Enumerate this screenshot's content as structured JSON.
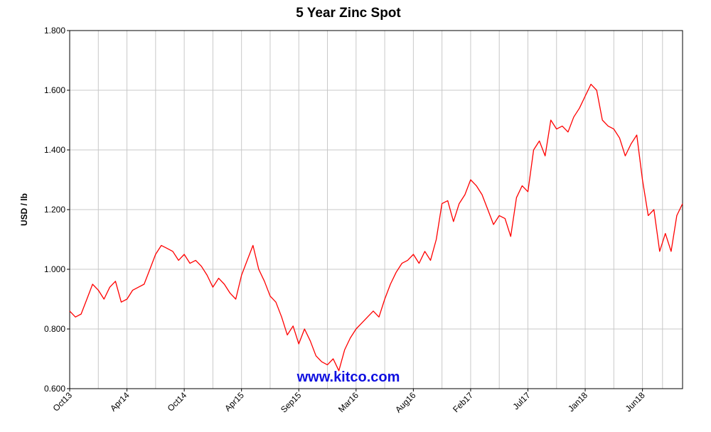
{
  "chart_data": {
    "type": "line",
    "title": "5 Year Zinc Spot",
    "y_label": "USD / lb",
    "annotation": "www.kitco.com",
    "categories": [
      "Oct13",
      null,
      null,
      null,
      null,
      null,
      null,
      null,
      null,
      null,
      "Apr14",
      null,
      null,
      null,
      null,
      null,
      null,
      null,
      null,
      null,
      "Oct14",
      null,
      null,
      null,
      null,
      null,
      null,
      null,
      null,
      null,
      "Apr15",
      null,
      null,
      null,
      null,
      null,
      null,
      null,
      null,
      null,
      "Sep15",
      null,
      null,
      null,
      null,
      null,
      null,
      null,
      null,
      null,
      "Mar16",
      null,
      null,
      null,
      null,
      null,
      null,
      null,
      null,
      null,
      "Aug16",
      null,
      null,
      null,
      null,
      null,
      null,
      null,
      null,
      null,
      "Feb17",
      null,
      null,
      null,
      null,
      null,
      null,
      null,
      null,
      null,
      "Jul17",
      null,
      null,
      null,
      null,
      null,
      null,
      null,
      null,
      null,
      "Jan18",
      null,
      null,
      null,
      null,
      null,
      null,
      null,
      null,
      null,
      "Jun18",
      null,
      null,
      null,
      null,
      null,
      null,
      null
    ],
    "series": [
      {
        "name": "Zinc",
        "color": "#ff0000",
        "values": [
          0.86,
          0.84,
          0.85,
          0.9,
          0.95,
          0.93,
          0.9,
          0.94,
          0.96,
          0.89,
          0.9,
          0.93,
          0.94,
          0.95,
          1.0,
          1.05,
          1.08,
          1.07,
          1.06,
          1.03,
          1.05,
          1.02,
          1.03,
          1.01,
          0.98,
          0.94,
          0.97,
          0.95,
          0.92,
          0.9,
          0.98,
          1.03,
          1.08,
          1.0,
          0.96,
          0.91,
          0.89,
          0.84,
          0.78,
          0.81,
          0.75,
          0.8,
          0.76,
          0.71,
          0.69,
          0.68,
          0.7,
          0.66,
          0.73,
          0.77,
          0.8,
          0.82,
          0.84,
          0.86,
          0.84,
          0.9,
          0.95,
          0.99,
          1.02,
          1.03,
          1.05,
          1.02,
          1.06,
          1.03,
          1.1,
          1.22,
          1.23,
          1.16,
          1.22,
          1.25,
          1.3,
          1.28,
          1.25,
          1.2,
          1.15,
          1.18,
          1.17,
          1.11,
          1.24,
          1.28,
          1.26,
          1.4,
          1.43,
          1.38,
          1.5,
          1.47,
          1.48,
          1.46,
          1.51,
          1.54,
          1.58,
          1.62,
          1.6,
          1.5,
          1.48,
          1.47,
          1.44,
          1.38,
          1.42,
          1.45,
          1.3,
          1.18,
          1.2,
          1.06,
          1.12,
          1.06,
          1.18,
          1.22
        ]
      }
    ],
    "ylim": [
      0.6,
      1.8
    ],
    "yticks": [
      {
        "value": 0.6,
        "label": "0.600"
      },
      {
        "value": 0.8,
        "label": "0.800"
      },
      {
        "value": 1.0,
        "label": "1.000"
      },
      {
        "value": 1.2,
        "label": "1.200"
      },
      {
        "value": 1.4,
        "label": "1.400"
      },
      {
        "value": 1.6,
        "label": "1.600"
      },
      {
        "value": 1.8,
        "label": "1.800"
      }
    ],
    "grid": true
  }
}
